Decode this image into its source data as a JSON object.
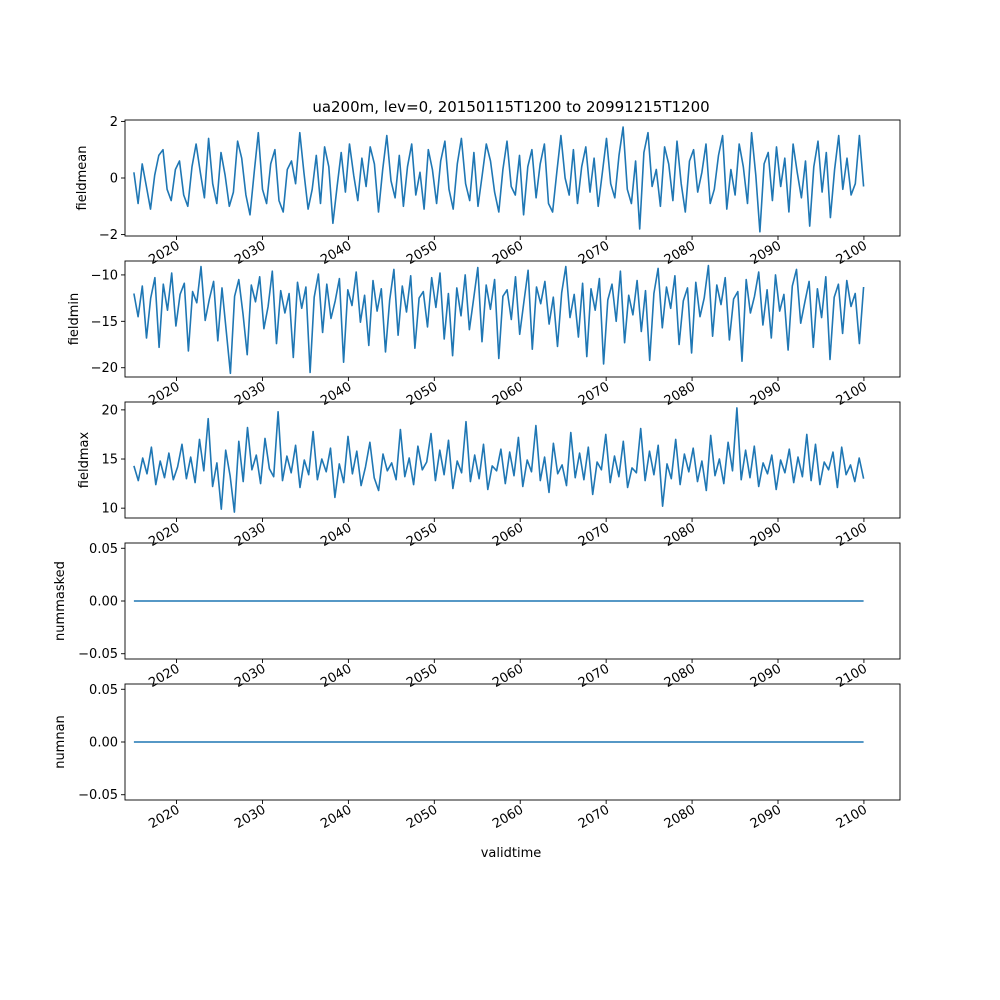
{
  "title": "ua200m, lev=0, 20150115T1200 to 20991215T1200",
  "xlabel": "validtime",
  "x_ticks": [
    "2020",
    "2030",
    "2040",
    "2050",
    "2060",
    "2070",
    "2080",
    "2090",
    "2100"
  ],
  "line_color": "#1f77b4",
  "chart_data": [
    {
      "type": "line",
      "ylabel": "fieldmean",
      "x_range": [
        "2015-01-15",
        "2099-12-15"
      ],
      "xlim": [
        2014.0,
        2104.2
      ],
      "ylim": [
        -2.05,
        2.05
      ],
      "y_ticks": [
        -2,
        0,
        2
      ],
      "y_tick_labels": [
        "−2",
        "0",
        "2"
      ],
      "series": [
        {
          "values": [
            0.2,
            -0.9,
            0.5,
            -0.3,
            -1.1,
            0.1,
            0.8,
            1.0,
            -0.4,
            -0.8,
            0.3,
            0.6,
            -0.6,
            -1.0,
            0.4,
            1.2,
            0.2,
            -0.7,
            1.4,
            -0.2,
            -0.9,
            0.9,
            0.1,
            -1.0,
            -0.5,
            1.3,
            0.7,
            -0.6,
            -1.3,
            0.2,
            1.6,
            -0.4,
            -0.9,
            0.5,
            1.0,
            -0.8,
            -1.2,
            0.3,
            0.6,
            -0.2,
            1.6,
            0.2,
            -1.1,
            -0.4,
            0.8,
            -0.9,
            1.1,
            0.4,
            -1.6,
            -0.3,
            0.9,
            -0.5,
            1.2,
            0.1,
            -0.8,
            0.7,
            -0.3,
            1.1,
            0.5,
            -1.2,
            0.3,
            1.5,
            -0.1,
            -0.7,
            0.8,
            -1.0,
            0.4,
            1.2,
            -0.6,
            0.2,
            -1.1,
            1.0,
            0.3,
            -0.9,
            0.6,
            1.3,
            -0.4,
            -1.1,
            0.5,
            1.4,
            -0.2,
            -0.8,
            0.9,
            -1.0,
            0.1,
            1.2,
            0.6,
            -0.5,
            -1.2,
            0.3,
            1.3,
            -0.3,
            -0.6,
            0.8,
            -1.3,
            0.4,
            1.0,
            -0.7,
            0.5,
            1.2,
            -0.9,
            -1.2,
            0.2,
            1.5,
            0.0,
            -0.6,
            1.0,
            -0.9,
            0.4,
            1.1,
            -0.5,
            0.7,
            -1.0,
            0.2,
            1.4,
            -0.2,
            -0.7,
            0.8,
            1.8,
            -0.4,
            -0.9,
            0.6,
            -1.8,
            0.9,
            1.6,
            -0.3,
            0.3,
            -1.0,
            1.1,
            0.5,
            -0.8,
            1.3,
            -0.2,
            -1.2,
            0.6,
            1.0,
            -0.5,
            0.2,
            1.2,
            -0.9,
            -0.4,
            0.8,
            1.5,
            -1.1,
            0.3,
            -0.6,
            1.2,
            0.4,
            -0.9,
            1.6,
            0.1,
            -1.9,
            0.5,
            0.9,
            -0.8,
            1.1,
            -0.3,
            0.7,
            -1.2,
            1.2,
            0.2,
            -0.7,
            0.6,
            -1.7,
            0.4,
            1.3,
            -0.5,
            0.9,
            -1.4,
            0.3,
            1.5,
            -0.4,
            0.7,
            -0.6,
            -0.2,
            1.5,
            -0.3
          ]
        }
      ]
    },
    {
      "type": "line",
      "ylabel": "fieldmin",
      "x_range": [
        "2015-01-15",
        "2099-12-15"
      ],
      "xlim": [
        2014.0,
        2104.2
      ],
      "ylim": [
        -21.0,
        -8.5
      ],
      "y_ticks": [
        -20,
        -15,
        -10
      ],
      "y_tick_labels": [
        "−20",
        "−15",
        "−10"
      ],
      "series": [
        {
          "values": [
            -12.0,
            -14.5,
            -11.2,
            -16.8,
            -12.5,
            -10.3,
            -17.8,
            -11.0,
            -13.8,
            -9.8,
            -15.5,
            -12.1,
            -10.9,
            -18.2,
            -11.8,
            -13.0,
            -9.1,
            -14.9,
            -12.6,
            -10.7,
            -17.1,
            -11.4,
            -16.0,
            -20.6,
            -12.3,
            -10.5,
            -14.2,
            -18.6,
            -11.1,
            -12.9,
            -10.2,
            -15.8,
            -13.4,
            -9.6,
            -17.4,
            -11.7,
            -14.1,
            -12.0,
            -18.9,
            -10.8,
            -13.6,
            -11.3,
            -20.5,
            -12.4,
            -9.9,
            -16.2,
            -11.0,
            -14.7,
            -12.8,
            -10.4,
            -19.4,
            -11.6,
            -13.3,
            -9.7,
            -15.1,
            -12.2,
            -17.6,
            -10.6,
            -13.9,
            -11.5,
            -18.3,
            -12.7,
            -9.4,
            -16.5,
            -11.2,
            -14.0,
            -10.1,
            -17.9,
            -12.5,
            -11.8,
            -15.6,
            -10.3,
            -13.5,
            -9.8,
            -16.9,
            -12.0,
            -18.7,
            -11.4,
            -14.4,
            -10.0,
            -15.9,
            -12.6,
            -9.2,
            -17.2,
            -11.1,
            -13.7,
            -10.5,
            -19.0,
            -12.3,
            -11.6,
            -14.8,
            -10.2,
            -16.4,
            -12.9,
            -9.5,
            -18.0,
            -11.3,
            -13.1,
            -10.7,
            -15.3,
            -12.4,
            -17.7,
            -11.9,
            -9.1,
            -14.6,
            -12.1,
            -16.7,
            -10.9,
            -18.8,
            -11.5,
            -13.8,
            -10.4,
            -19.6,
            -12.7,
            -11.0,
            -15.0,
            -9.6,
            -17.3,
            -12.2,
            -14.3,
            -10.6,
            -16.1,
            -11.7,
            -19.2,
            -12.0,
            -9.3,
            -15.7,
            -11.3,
            -13.6,
            -10.1,
            -17.5,
            -12.8,
            -11.4,
            -18.4,
            -10.8,
            -14.5,
            -12.5,
            -9.0,
            -16.6,
            -11.1,
            -13.2,
            -10.3,
            -17.0,
            -12.6,
            -11.8,
            -19.3,
            -10.5,
            -14.1,
            -12.3,
            -9.7,
            -15.4,
            -11.6,
            -16.8,
            -10.0,
            -13.9,
            -12.1,
            -18.1,
            -11.2,
            -9.4,
            -15.2,
            -12.9,
            -10.7,
            -17.8,
            -11.5,
            -14.6,
            -10.2,
            -19.1,
            -12.4,
            -11.0,
            -16.3,
            -10.6,
            -13.4,
            -12.0,
            -17.4,
            -11.3
          ]
        }
      ]
    },
    {
      "type": "line",
      "ylabel": "fieldmax",
      "x_range": [
        "2015-01-15",
        "2099-12-15"
      ],
      "xlim": [
        2014.0,
        2104.2
      ],
      "ylim": [
        9.0,
        20.8
      ],
      "y_ticks": [
        10,
        15,
        20
      ],
      "y_tick_labels": [
        "10",
        "15",
        "20"
      ],
      "series": [
        {
          "values": [
            14.3,
            12.8,
            15.1,
            13.5,
            16.2,
            12.4,
            14.8,
            13.1,
            15.6,
            12.9,
            14.2,
            16.5,
            13.0,
            15.2,
            12.6,
            17.0,
            13.8,
            19.1,
            12.2,
            14.6,
            9.9,
            15.9,
            13.3,
            9.6,
            16.8,
            12.7,
            18.2,
            13.9,
            15.4,
            12.5,
            17.1,
            14.0,
            13.2,
            19.8,
            12.8,
            15.3,
            13.6,
            16.4,
            12.1,
            14.9,
            13.4,
            17.8,
            12.9,
            15.0,
            13.7,
            16.1,
            11.1,
            14.5,
            12.6,
            17.3,
            13.5,
            15.8,
            12.3,
            14.2,
            16.7,
            13.1,
            11.8,
            15.5,
            13.8,
            14.6,
            12.9,
            18.0,
            13.2,
            15.1,
            12.4,
            16.3,
            13.9,
            14.7,
            17.6,
            12.8,
            15.9,
            13.4,
            16.9,
            12.0,
            14.8,
            13.6,
            18.8,
            12.7,
            15.4,
            13.0,
            16.5,
            11.9,
            14.3,
            13.8,
            16.0,
            12.5,
            15.7,
            13.3,
            17.2,
            12.2,
            14.9,
            13.7,
            18.4,
            12.8,
            15.2,
            11.6,
            16.6,
            13.5,
            14.4,
            12.3,
            17.7,
            13.1,
            15.6,
            12.9,
            16.2,
            11.4,
            14.7,
            13.9,
            17.5,
            12.6,
            15.3,
            13.2,
            16.8,
            12.1,
            14.1,
            13.6,
            18.1,
            12.8,
            15.8,
            13.4,
            16.4,
            10.2,
            14.5,
            13.0,
            17.0,
            12.4,
            15.5,
            13.7,
            16.1,
            12.7,
            14.8,
            11.8,
            17.4,
            13.3,
            15.0,
            12.5,
            16.7,
            13.8,
            20.2,
            12.9,
            15.9,
            13.1,
            16.3,
            12.2,
            14.6,
            13.5,
            15.4,
            11.9,
            14.9,
            13.6,
            16.0,
            12.6,
            15.2,
            13.2,
            17.5,
            12.8,
            16.5,
            12.4,
            14.7,
            13.9,
            15.7,
            12.1,
            16.2,
            13.4,
            14.4,
            12.7,
            15.1,
            13.0
          ]
        }
      ]
    },
    {
      "type": "line",
      "ylabel": "nummasked",
      "x_range": [
        "2015-01-15",
        "2099-12-15"
      ],
      "xlim": [
        2014.0,
        2104.2
      ],
      "ylim": [
        -0.055,
        0.055
      ],
      "y_ticks": [
        -0.05,
        0.0,
        0.05
      ],
      "y_tick_labels": [
        "−0.05",
        "0.00",
        "0.05"
      ],
      "series": [
        {
          "values": [
            0.0,
            0.0
          ]
        }
      ]
    },
    {
      "type": "line",
      "ylabel": "numnan",
      "x_range": [
        "2015-01-15",
        "2099-12-15"
      ],
      "xlim": [
        2014.0,
        2104.2
      ],
      "ylim": [
        -0.055,
        0.055
      ],
      "y_ticks": [
        -0.05,
        0.0,
        0.05
      ],
      "y_tick_labels": [
        "−0.05",
        "0.00",
        "0.05"
      ],
      "series": [
        {
          "values": [
            0.0,
            0.0
          ]
        }
      ]
    }
  ]
}
